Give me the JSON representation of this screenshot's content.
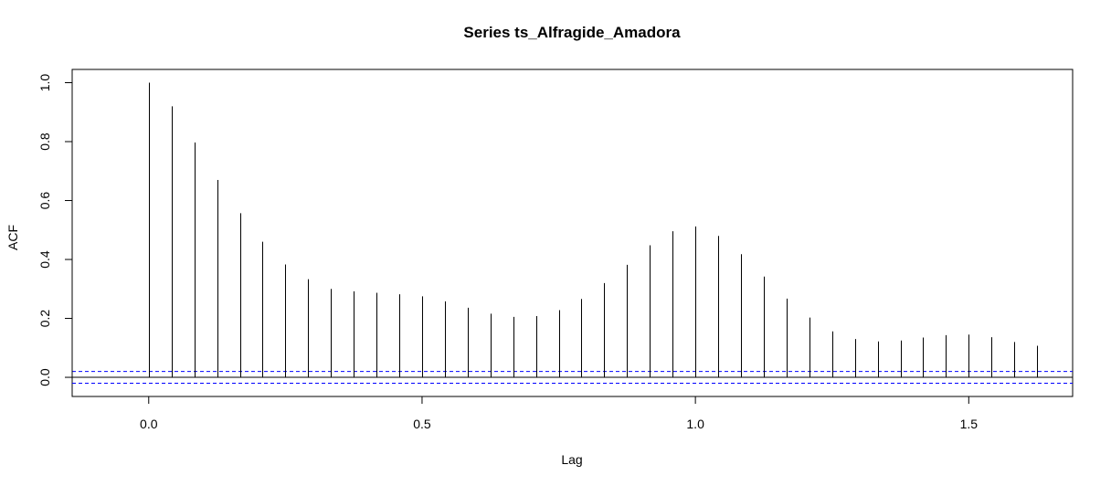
{
  "chart_data": {
    "type": "bar",
    "title": "Series  ts_Alfragide_Amadora",
    "xlabel": "Lag",
    "ylabel": "ACF",
    "xlim": [
      -0.14,
      1.69
    ],
    "ylim": [
      -0.065,
      1.045
    ],
    "x_ticks": [
      {
        "value": 0.0,
        "label": "0.0"
      },
      {
        "value": 0.5,
        "label": "0.5"
      },
      {
        "value": 1.0,
        "label": "1.0"
      },
      {
        "value": 1.5,
        "label": "1.5"
      }
    ],
    "y_ticks": [
      {
        "value": 0.0,
        "label": "0.0"
      },
      {
        "value": 0.2,
        "label": "0.2"
      },
      {
        "value": 0.4,
        "label": "0.4"
      },
      {
        "value": 0.6,
        "label": "0.6"
      },
      {
        "value": 0.8,
        "label": "0.8"
      },
      {
        "value": 1.0,
        "label": "1.0"
      }
    ],
    "confidence_bounds": [
      0.02,
      -0.02
    ],
    "confidence_color": "#0000ff",
    "bar_color": "#000000",
    "lags": [
      0.0,
      0.0417,
      0.0833,
      0.125,
      0.1667,
      0.2083,
      0.25,
      0.2917,
      0.3333,
      0.375,
      0.4167,
      0.4583,
      0.5,
      0.5417,
      0.5833,
      0.625,
      0.6667,
      0.7083,
      0.75,
      0.7917,
      0.8333,
      0.875,
      0.9167,
      0.9583,
      1.0,
      1.0417,
      1.0833,
      1.125,
      1.1667,
      1.2083,
      1.25,
      1.2917,
      1.3333,
      1.375,
      1.4167,
      1.4583,
      1.5,
      1.5417,
      1.5833,
      1.625
    ],
    "values": [
      1.0,
      0.92,
      0.797,
      0.67,
      0.557,
      0.46,
      0.383,
      0.333,
      0.3,
      0.292,
      0.287,
      0.282,
      0.275,
      0.258,
      0.236,
      0.216,
      0.205,
      0.208,
      0.228,
      0.266,
      0.32,
      0.382,
      0.448,
      0.496,
      0.512,
      0.48,
      0.418,
      0.342,
      0.267,
      0.203,
      0.156,
      0.13,
      0.122,
      0.125,
      0.135,
      0.143,
      0.145,
      0.136,
      0.12,
      0.107
    ]
  }
}
